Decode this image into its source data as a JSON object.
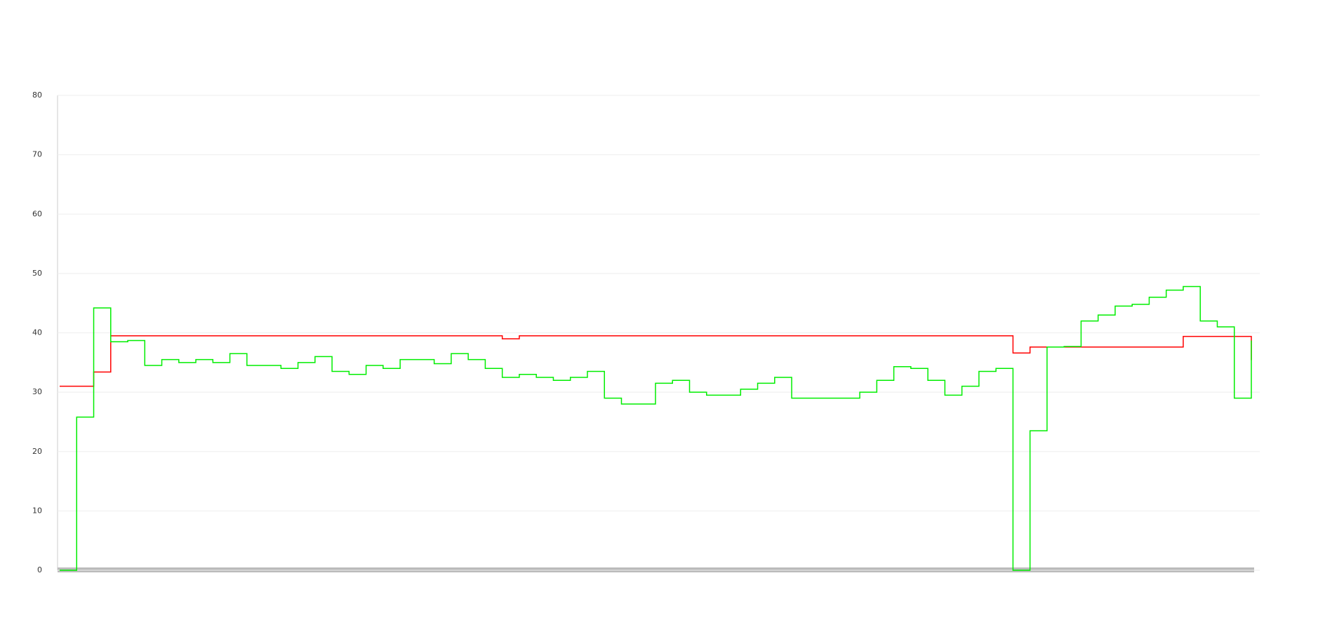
{
  "chart_data": {
    "type": "step-line",
    "categories": [
      null,
      null,
      null,
      null,
      null,
      null,
      null,
      null,
      null,
      null,
      null,
      null,
      null,
      null,
      null,
      null,
      null,
      null,
      null,
      null,
      null,
      null,
      null,
      null,
      null,
      null,
      null,
      null,
      null,
      null,
      null,
      null,
      null,
      null,
      null,
      null,
      null,
      null,
      null,
      null,
      null,
      null,
      null,
      null,
      null,
      null,
      null,
      null,
      null,
      null,
      null,
      null,
      null,
      null,
      null,
      null,
      null,
      null,
      null,
      null,
      null,
      null,
      null,
      null,
      null,
      null,
      null,
      null,
      null,
      null,
      null
    ],
    "series": [
      {
        "color": "#ff0000",
        "values": [
          31,
          31,
          33.4,
          39.5,
          39.5,
          39.5,
          39.5,
          39.5,
          39.5,
          39.5,
          39.5,
          39.5,
          39.5,
          39.5,
          39.5,
          39.5,
          39.5,
          39.5,
          39.5,
          39.5,
          39.5,
          39.5,
          39.5,
          39.5,
          39.5,
          39.5,
          39,
          39.5,
          39.5,
          39.5,
          39.5,
          39.5,
          39.5,
          39.5,
          39.5,
          39.5,
          39.5,
          39.5,
          39.5,
          39.5,
          39.5,
          39.5,
          39.5,
          39.5,
          39.5,
          39.5,
          39.5,
          39.5,
          39.5,
          39.5,
          39.5,
          39.5,
          39.5,
          39.5,
          39.5,
          39.5,
          36.6,
          37.6,
          37.6,
          37.6,
          37.6,
          37.6,
          37.6,
          37.6,
          37.6,
          37.6,
          39.4,
          39.4,
          39.4,
          39.4,
          35.4
        ]
      },
      {
        "color": "#00ee00",
        "values": [
          0,
          25.8,
          44.2,
          38.5,
          38.7,
          34.5,
          35.5,
          35,
          35.5,
          35,
          36.5,
          34.5,
          34.5,
          34,
          35,
          36,
          33.5,
          33,
          34.5,
          34,
          35.5,
          35.5,
          34.8,
          36.5,
          35.5,
          34,
          32.5,
          33,
          32.5,
          32,
          32.5,
          33.5,
          29,
          28,
          28,
          31.5,
          32,
          30,
          29.5,
          29.5,
          30.5,
          31.5,
          32.5,
          29,
          29,
          29,
          29,
          30,
          32,
          34.3,
          34,
          32,
          29.5,
          31,
          33.5,
          34,
          0,
          23.5,
          37.6,
          37.7,
          42,
          43,
          44.5,
          44.8,
          46,
          47.2,
          47.8,
          42,
          41,
          29,
          38.7
        ]
      }
    ],
    "ylim": [
      0,
      80
    ],
    "yticks": [
      0,
      10,
      20,
      30,
      40,
      50,
      60,
      70,
      80
    ],
    "grid": true
  }
}
